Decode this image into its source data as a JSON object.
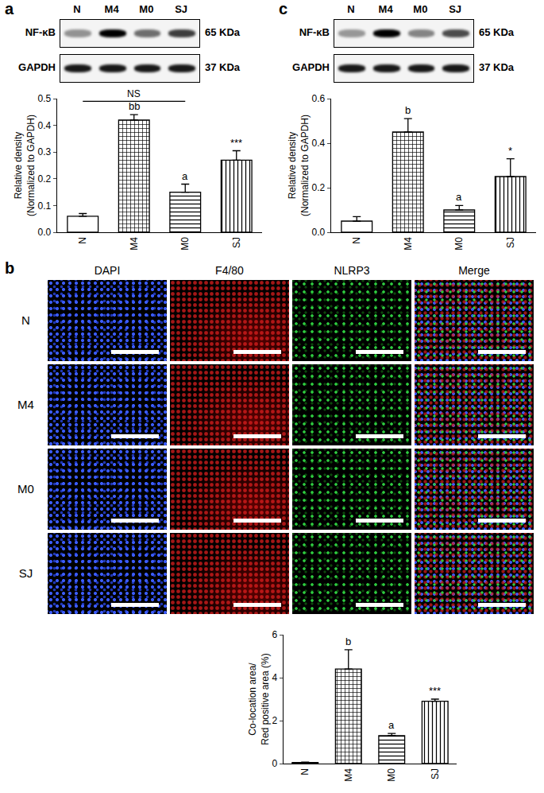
{
  "chart_data": [
    {
      "type": "bar",
      "categories": [
        "N",
        "M4",
        "M0",
        "SJ"
      ],
      "values": [
        0.06,
        0.42,
        0.15,
        0.27
      ],
      "errors": [
        0.01,
        0.02,
        0.03,
        0.035
      ],
      "color": "#000000",
      "grid": false,
      "y_label": [
        "Relative density",
        "(Normalized to GAPDH)"
      ],
      "ylim": [
        0,
        0.5
      ],
      "yticks": [
        {
          "value": 0,
          "label": "0.0"
        },
        0.1,
        0.2,
        0.3,
        0.4,
        0.5
      ],
      "annotations": [
        {
          "category": "M4",
          "text": "bb"
        },
        {
          "category": "M0",
          "text": "a"
        },
        {
          "category": "SJ",
          "text": "***"
        }
      ],
      "brackets": [
        {
          "from": "N",
          "to": "M0",
          "text": "NS"
        }
      ]
    },
    {
      "type": "bar",
      "categories": [
        "N",
        "M4",
        "M0",
        "SJ"
      ],
      "values": [
        0.05,
        0.45,
        0.1,
        0.25
      ],
      "errors": [
        0.02,
        0.06,
        0.02,
        0.08
      ],
      "color": "#000000",
      "grid": false,
      "y_label": [
        "Relative density",
        "(Normalized to GAPDH)"
      ],
      "ylim": [
        0,
        0.6
      ],
      "yticks": [
        {
          "value": 0,
          "label": "0.0"
        },
        0.2,
        0.4,
        0.6
      ],
      "annotations": [
        {
          "category": "M4",
          "text": "b"
        },
        {
          "category": "M0",
          "text": "a"
        },
        {
          "category": "SJ",
          "text": "*"
        }
      ],
      "brackets": []
    },
    {
      "type": "bar",
      "categories": [
        "N",
        "M4",
        "M0",
        "SJ"
      ],
      "values": [
        0.05,
        4.4,
        1.3,
        2.9
      ],
      "errors": [
        0.02,
        0.9,
        0.1,
        0.1
      ],
      "color": "#000000",
      "grid": false,
      "y_label": [
        "Co-location area/",
        "Red positive area (%)"
      ],
      "ylim": [
        0,
        6
      ],
      "yticks": [
        0,
        2,
        4,
        6
      ],
      "annotations": [
        {
          "category": "M4",
          "text": "b"
        },
        {
          "category": "M0",
          "text": "a"
        },
        {
          "category": "SJ",
          "text": "***"
        }
      ],
      "brackets": []
    }
  ],
  "figure": {
    "panel_labels": [
      "a",
      "b",
      "c"
    ],
    "blots": [
      {
        "lanes": [
          "N",
          "M4",
          "M0",
          "SJ"
        ],
        "rows": [
          {
            "label": "NF-κB",
            "size": "65 KDa"
          },
          {
            "label": "GAPDH",
            "size": "37 KDa"
          }
        ]
      },
      {
        "lanes": [
          "N",
          "M4",
          "M0",
          "SJ"
        ],
        "rows": [
          {
            "label": "NF-κB",
            "size": "65 KDa"
          },
          {
            "label": "GAPDH",
            "size": "37 KDa"
          }
        ]
      }
    ],
    "micrographs": {
      "columns": [
        "DAPI",
        "F4/80",
        "NLRP3",
        "Merge"
      ],
      "rows": [
        "N",
        "M4",
        "M0",
        "SJ"
      ]
    }
  }
}
